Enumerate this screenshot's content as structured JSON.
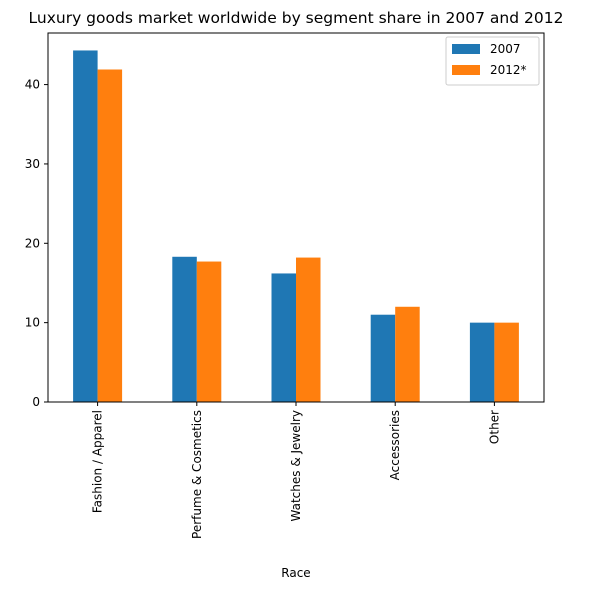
{
  "chart_data": {
    "type": "bar",
    "title": "Luxury goods market worldwide by segment share in 2007 and 2012",
    "xlabel": "Race",
    "ylabel": "",
    "categories": [
      "Fashion / Apparel",
      "Perfume & Cosmetics",
      "Watches & Jewelry",
      "Accessories",
      "Other"
    ],
    "series": [
      {
        "name": "2007",
        "color": "#1f77b4",
        "values": [
          44.3,
          18.3,
          16.2,
          11.0,
          10.0
        ]
      },
      {
        "name": "2012*",
        "color": "#ff7f0e",
        "values": [
          41.9,
          17.7,
          18.2,
          12.0,
          10.0
        ]
      }
    ],
    "ylim": [
      0,
      46.5
    ],
    "yticks": [
      0,
      10,
      20,
      30,
      40
    ],
    "grid": false,
    "legend_position": "top-right"
  }
}
